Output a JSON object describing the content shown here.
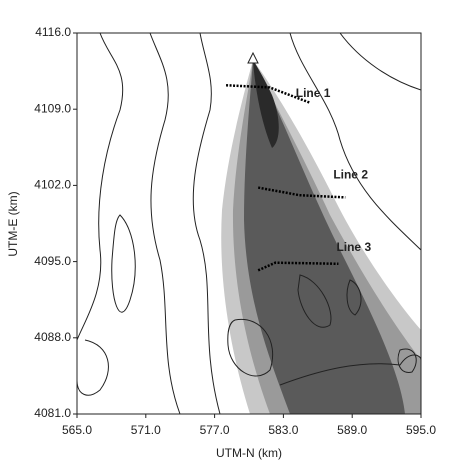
{
  "chart_data": {
    "type": "line",
    "xlabel": "UTM-N (km)",
    "ylabel": "UTM-E (km)",
    "xlim": [
      565,
      595
    ],
    "ylim": [
      4081,
      4116
    ],
    "xticks": [
      {
        "value": 565,
        "label": "565.0"
      },
      {
        "value": 571,
        "label": "571.0"
      },
      {
        "value": 577,
        "label": "577.0"
      },
      {
        "value": 583,
        "label": "583.0"
      },
      {
        "value": 589,
        "label": "589.0"
      },
      {
        "value": 595,
        "label": "595.0"
      }
    ],
    "yticks": [
      {
        "value": 4081,
        "label": "4081.0"
      },
      {
        "value": 4088,
        "label": "4088.0"
      },
      {
        "value": 4095,
        "label": "4095.0"
      },
      {
        "value": 4102,
        "label": "4102.0"
      },
      {
        "value": 4109,
        "label": "4109.0"
      },
      {
        "value": 4116,
        "label": "4116.0"
      }
    ],
    "series": [
      {
        "name": "Line 1",
        "color": "#000000",
        "x": [
          578.0,
          581.8,
          585.3
        ],
        "values": [
          4111.2,
          4111.0,
          4109.6
        ]
      },
      {
        "name": "Line 2",
        "color": "#000000",
        "x": [
          580.8,
          584.4,
          588.4
        ],
        "values": [
          4101.8,
          4101.1,
          4100.9
        ]
      },
      {
        "name": "Line 3",
        "color": "#000000",
        "x": [
          580.8,
          582.3,
          587.8
        ],
        "values": [
          4094.2,
          4094.9,
          4094.8
        ]
      }
    ]
  }
}
